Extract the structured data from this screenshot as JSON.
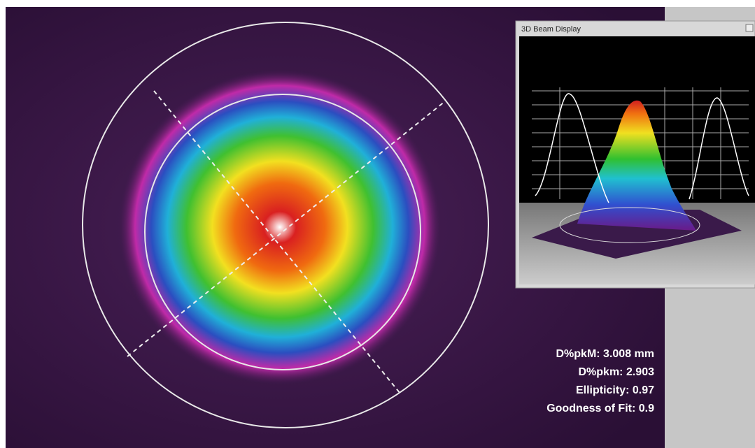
{
  "window": {
    "title": "3D Beam Display"
  },
  "measurements": [
    "D%pkM: 3.008 mm",
    "D%pkm: 2.903",
    "Ellipticity: 0.97",
    "Goodness of Fit: 0.9"
  ]
}
